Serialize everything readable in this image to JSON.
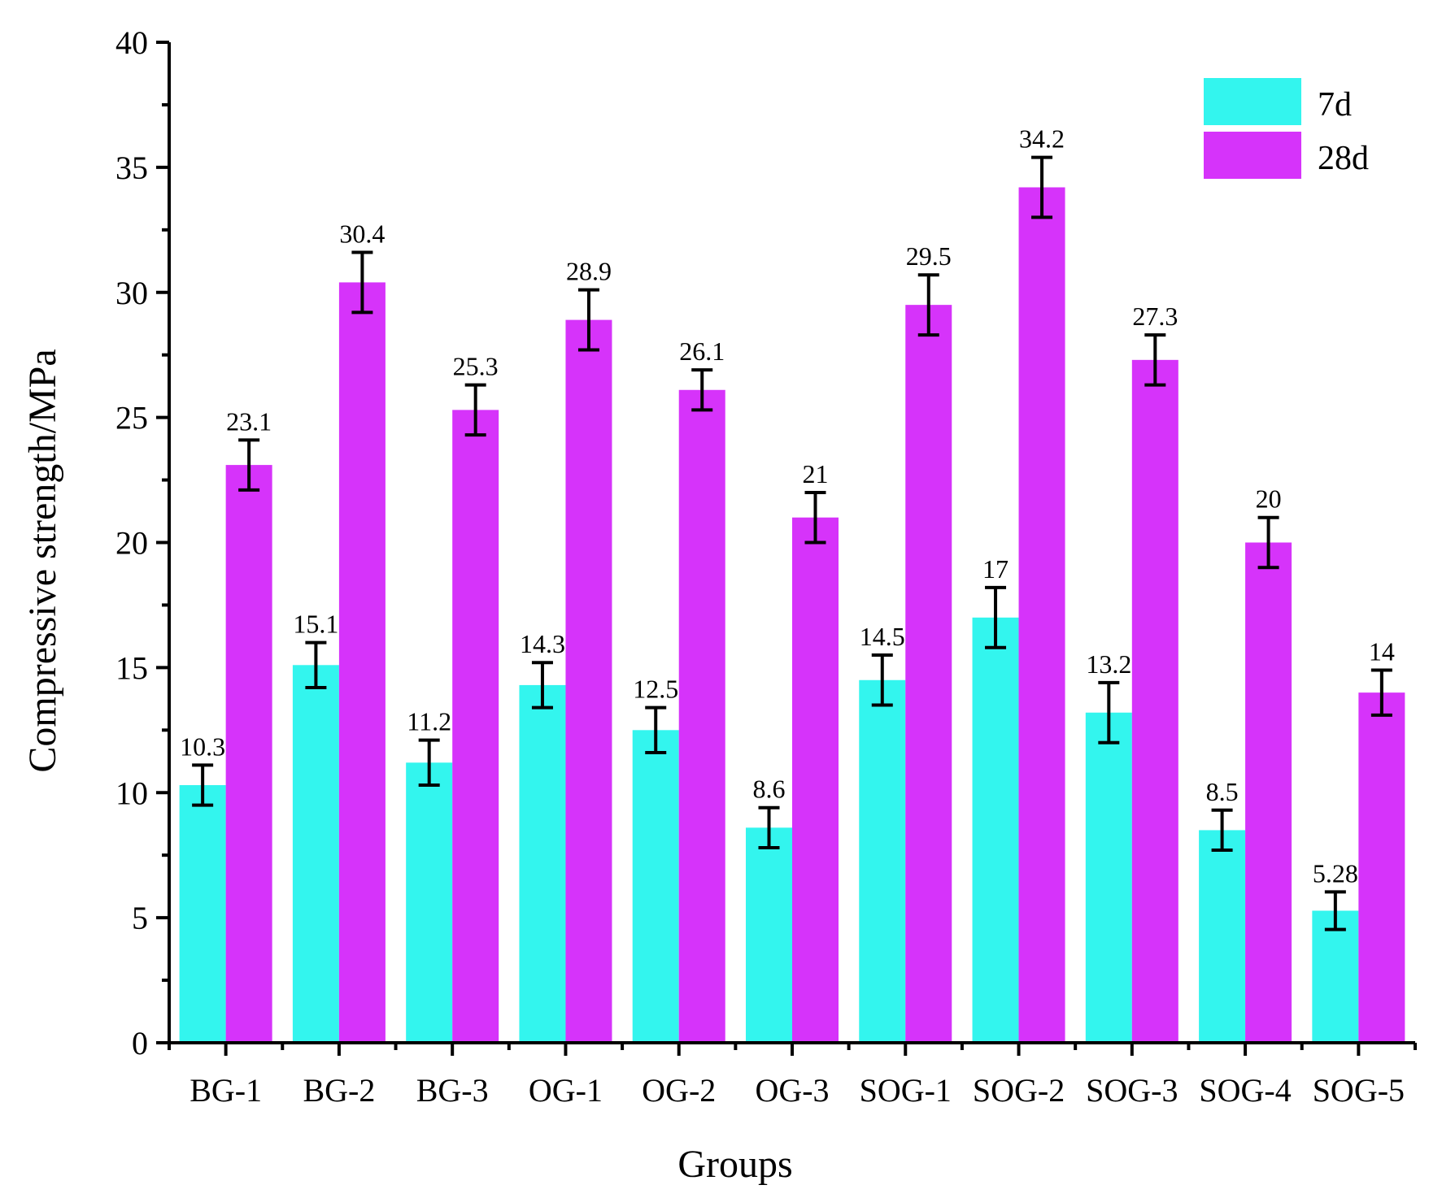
{
  "chart_data": {
    "type": "bar",
    "title": "",
    "xlabel": "Groups",
    "ylabel": "Compressive strength/MPa",
    "ylim": [
      0,
      40
    ],
    "yticks": [
      0,
      5,
      10,
      15,
      20,
      25,
      30,
      35,
      40
    ],
    "categories": [
      "BG-1",
      "BG-2",
      "BG-3",
      "OG-1",
      "OG-2",
      "OG-3",
      "SOG-1",
      "SOG-2",
      "SOG-3",
      "SOG-4",
      "SOG-5"
    ],
    "series": [
      {
        "name": "7d",
        "color": "#33F5EE",
        "values": [
          10.3,
          15.1,
          11.2,
          14.3,
          12.5,
          8.6,
          14.5,
          17,
          13.2,
          8.5,
          5.28
        ],
        "labels": [
          "10.3",
          "15.1",
          "11.2",
          "14.3",
          "12.5",
          "8.6",
          "14.5",
          "17",
          "13.2",
          "8.5",
          "5.28"
        ],
        "errors": [
          0.8,
          0.9,
          0.9,
          0.9,
          0.9,
          0.8,
          1.0,
          1.2,
          1.2,
          0.8,
          0.75
        ]
      },
      {
        "name": "28d",
        "color": "#D633FA",
        "values": [
          23.1,
          30.4,
          25.3,
          28.9,
          26.1,
          21,
          29.5,
          34.2,
          27.3,
          20,
          14
        ],
        "labels": [
          "23.1",
          "30.4",
          "25.3",
          "28.9",
          "26.1",
          "21",
          "29.5",
          "34.2",
          "27.3",
          "20",
          "14"
        ],
        "errors": [
          1.0,
          1.2,
          1.0,
          1.2,
          0.8,
          1.0,
          1.2,
          1.2,
          1.0,
          1.0,
          0.9
        ]
      }
    ],
    "legend": {
      "position": "top-right"
    },
    "grid": false
  }
}
